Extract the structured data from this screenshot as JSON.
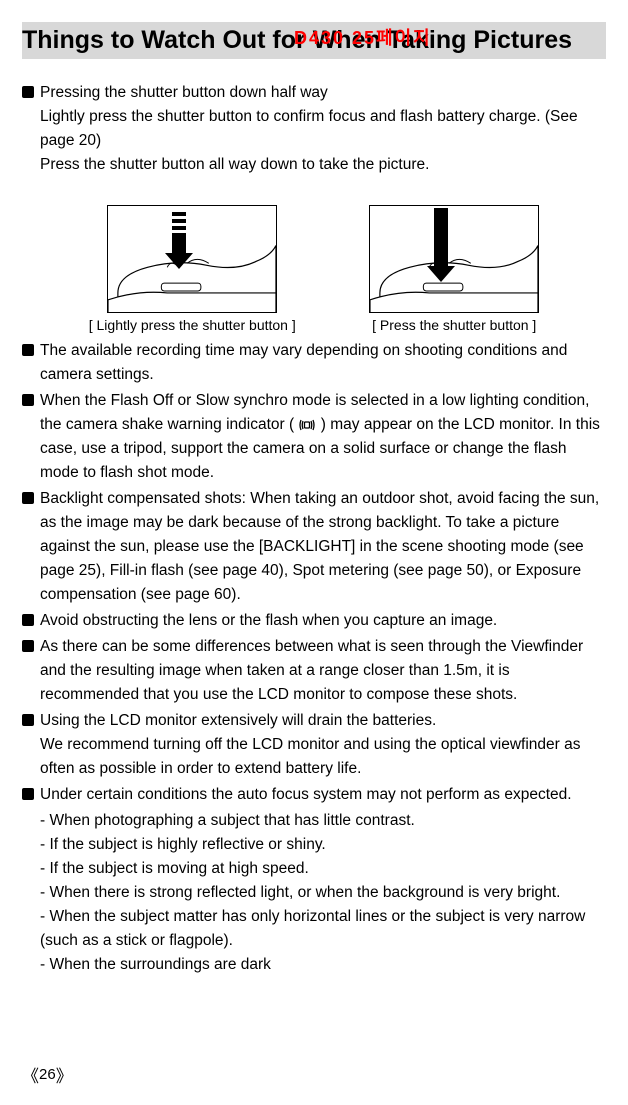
{
  "header_label": "D430 25페이지",
  "title": "Things to Watch Out for When Taking Pictures",
  "intro": {
    "lead": "Pressing the shutter button down half way",
    "line1": "Lightly press the shutter button to confirm focus and flash battery charge. (See page 20)",
    "line2": "Press the shutter button all way down to take the picture."
  },
  "figures": {
    "left_caption": "[ Lightly press the shutter button ]",
    "right_caption": "[ Press the shutter button ]"
  },
  "bullets": [
    "The available recording time may vary depending on shooting conditions and camera settings.",
    "When the Flash Off or Slow synchro mode is selected in a low lighting condition, the camera shake warning indicator (      ) may appear on the LCD monitor. In this case, use a tripod, support the camera on a solid surface or change the flash mode to flash shot mode.",
    "Backlight compensated shots: When taking an outdoor shot, avoid facing the sun, as the image may be dark because of the strong backlight. To take a picture against the sun, please use the [BACKLIGHT] in the scene shooting mode (see page 25), Fill-in flash (see page 40), Spot metering (see page 50), or Exposure compensation (see page 60).",
    "Avoid obstructing the lens or the flash when you capture an image.",
    "As there can be some differences between what is seen through the Viewfinder and the resulting image when taken at a range closer than 1.5m, it is recommended that you use the LCD monitor to compose these shots.",
    "Using the LCD monitor extensively will drain the batteries.\nWe recommend turning off the LCD monitor and using the optical viewfinder as often as possible in order to extend battery life.",
    "Under certain conditions the auto focus system may not perform as expected."
  ],
  "sub_items": [
    "- When photographing a subject that has little contrast.",
    "- If the subject is highly reflective or shiny.",
    "- If the subject is moving at high speed.",
    "- When there is strong reflected light, or when the background is very bright.",
    "- When the subject matter has only horizontal lines or the subject is very narrow (such as a stick or flagpole).",
    "- When the surroundings are dark"
  ],
  "page_number": "26",
  "colors": {
    "header_red": "#ff0000",
    "title_bg": "#d8d8d8",
    "text": "#000000",
    "bg": "#ffffff"
  }
}
